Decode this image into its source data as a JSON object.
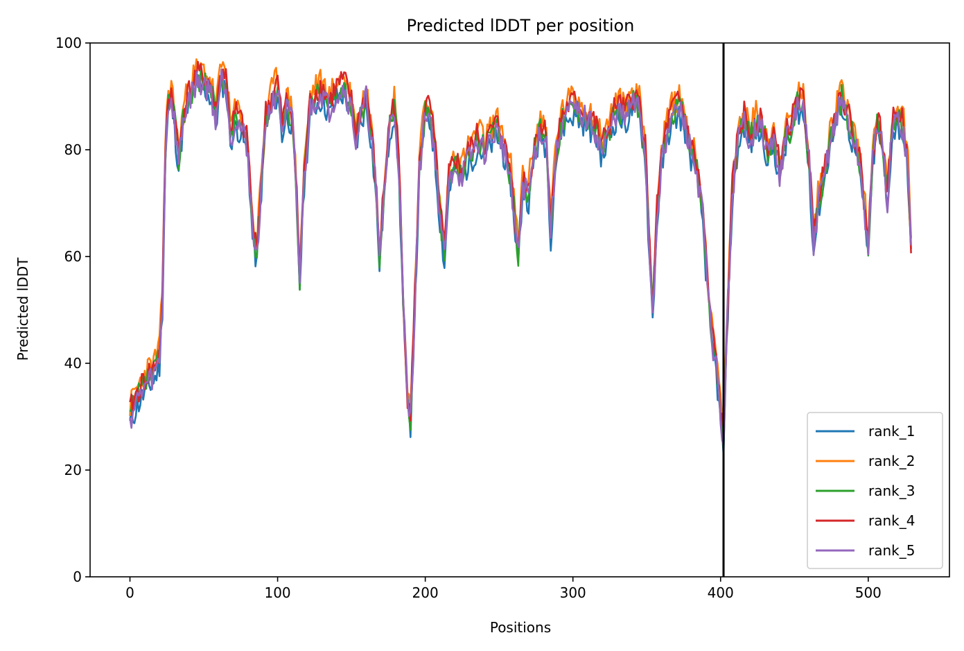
{
  "chart_data": {
    "type": "line",
    "title": "Predicted lDDT per position",
    "xlabel": "Positions",
    "ylabel": "Predicted lDDT",
    "xlim": [
      -27,
      555
    ],
    "ylim": [
      0,
      100
    ],
    "xticks": [
      0,
      100,
      200,
      300,
      400,
      500
    ],
    "yticks": [
      0,
      20,
      40,
      60,
      80,
      100
    ],
    "grid": false,
    "legend_position": "lower-right",
    "vline": 402,
    "colors": {
      "rank_1": "#1f77b4",
      "rank_2": "#ff7f0e",
      "rank_3": "#2ca02c",
      "rank_4": "#d62728",
      "rank_5": "#9467bd",
      "vline": "#000000"
    },
    "base_profile": [
      [
        0,
        30
      ],
      [
        4,
        33
      ],
      [
        8,
        35
      ],
      [
        12,
        37
      ],
      [
        16,
        38
      ],
      [
        20,
        41
      ],
      [
        22,
        52
      ],
      [
        24,
        80
      ],
      [
        26,
        89
      ],
      [
        28,
        90
      ],
      [
        30,
        86
      ],
      [
        33,
        78
      ],
      [
        36,
        86
      ],
      [
        40,
        90
      ],
      [
        45,
        93
      ],
      [
        50,
        93
      ],
      [
        55,
        91
      ],
      [
        58,
        86
      ],
      [
        62,
        94
      ],
      [
        65,
        93
      ],
      [
        68,
        83
      ],
      [
        72,
        86
      ],
      [
        76,
        84
      ],
      [
        80,
        80
      ],
      [
        83,
        65
      ],
      [
        86,
        60
      ],
      [
        88,
        70
      ],
      [
        92,
        86
      ],
      [
        96,
        89
      ],
      [
        100,
        92
      ],
      [
        103,
        84
      ],
      [
        106,
        88
      ],
      [
        110,
        86
      ],
      [
        113,
        70
      ],
      [
        115,
        56
      ],
      [
        118,
        75
      ],
      [
        122,
        88
      ],
      [
        126,
        90
      ],
      [
        130,
        91
      ],
      [
        135,
        88
      ],
      [
        140,
        91
      ],
      [
        145,
        92
      ],
      [
        150,
        88
      ],
      [
        153,
        82
      ],
      [
        156,
        86
      ],
      [
        160,
        90
      ],
      [
        163,
        84
      ],
      [
        166,
        75
      ],
      [
        169,
        60
      ],
      [
        172,
        72
      ],
      [
        176,
        85
      ],
      [
        179,
        88
      ],
      [
        182,
        78
      ],
      [
        185,
        52
      ],
      [
        188,
        33
      ],
      [
        190,
        30
      ],
      [
        193,
        52
      ],
      [
        196,
        76
      ],
      [
        200,
        88
      ],
      [
        204,
        86
      ],
      [
        207,
        78
      ],
      [
        210,
        68
      ],
      [
        213,
        60
      ],
      [
        216,
        74
      ],
      [
        220,
        78
      ],
      [
        224,
        75
      ],
      [
        228,
        78
      ],
      [
        232,
        80
      ],
      [
        236,
        82
      ],
      [
        240,
        80
      ],
      [
        244,
        82
      ],
      [
        248,
        84
      ],
      [
        252,
        82
      ],
      [
        255,
        78
      ],
      [
        258,
        75
      ],
      [
        261,
        66
      ],
      [
        263,
        60
      ],
      [
        266,
        74
      ],
      [
        270,
        72
      ],
      [
        274,
        80
      ],
      [
        278,
        84
      ],
      [
        282,
        82
      ],
      [
        285,
        65
      ],
      [
        288,
        78
      ],
      [
        292,
        85
      ],
      [
        296,
        87
      ],
      [
        300,
        88
      ],
      [
        305,
        87
      ],
      [
        310,
        86
      ],
      [
        315,
        84
      ],
      [
        320,
        80
      ],
      [
        325,
        84
      ],
      [
        330,
        88
      ],
      [
        335,
        86
      ],
      [
        340,
        89
      ],
      [
        345,
        88
      ],
      [
        349,
        80
      ],
      [
        352,
        60
      ],
      [
        354,
        50
      ],
      [
        357,
        68
      ],
      [
        360,
        78
      ],
      [
        364,
        84
      ],
      [
        368,
        87
      ],
      [
        372,
        88
      ],
      [
        376,
        85
      ],
      [
        380,
        80
      ],
      [
        384,
        76
      ],
      [
        388,
        68
      ],
      [
        391,
        55
      ],
      [
        394,
        45
      ],
      [
        397,
        40
      ],
      [
        400,
        30
      ],
      [
        402,
        25
      ],
      [
        405,
        52
      ],
      [
        408,
        72
      ],
      [
        412,
        82
      ],
      [
        416,
        86
      ],
      [
        420,
        82
      ],
      [
        424,
        85
      ],
      [
        428,
        84
      ],
      [
        432,
        80
      ],
      [
        436,
        82
      ],
      [
        440,
        76
      ],
      [
        444,
        82
      ],
      [
        448,
        84
      ],
      [
        452,
        89
      ],
      [
        456,
        88
      ],
      [
        460,
        78
      ],
      [
        463,
        62
      ],
      [
        466,
        70
      ],
      [
        470,
        75
      ],
      [
        474,
        82
      ],
      [
        478,
        86
      ],
      [
        482,
        90
      ],
      [
        486,
        86
      ],
      [
        490,
        82
      ],
      [
        494,
        78
      ],
      [
        497,
        70
      ],
      [
        500,
        62
      ],
      [
        503,
        78
      ],
      [
        506,
        86
      ],
      [
        510,
        80
      ],
      [
        513,
        70
      ],
      [
        516,
        84
      ],
      [
        520,
        86
      ],
      [
        524,
        84
      ],
      [
        527,
        76
      ],
      [
        529,
        62
      ]
    ],
    "series": [
      {
        "name": "rank_1",
        "offset": -1.5,
        "seed": 11
      },
      {
        "name": "rank_2",
        "offset": 2.0,
        "seed": 23
      },
      {
        "name": "rank_3",
        "offset": 0.0,
        "seed": 37
      },
      {
        "name": "rank_4",
        "offset": 1.0,
        "seed": 41
      },
      {
        "name": "rank_5",
        "offset": -0.5,
        "seed": 59
      }
    ],
    "x_max": 529
  }
}
